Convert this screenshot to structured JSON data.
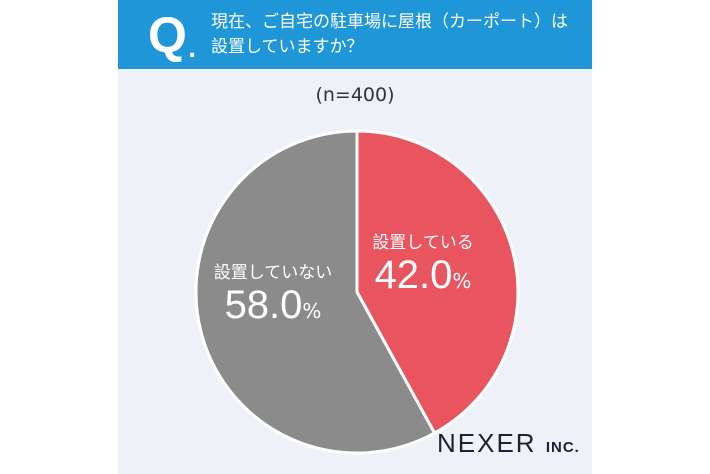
{
  "header": {
    "q": "Q",
    "q_dot": ".",
    "title_line1": "現在、ご自宅の駐車場に屋根（カーポート）は",
    "title_line2": "設置していますか？"
  },
  "sample": "(n=400)",
  "chart_data": {
    "type": "pie",
    "title": "現在、ご自宅の駐車場に屋根（カーポート）は設置していますか？",
    "n": 400,
    "slices": [
      {
        "label": "設置している",
        "value": 42.0,
        "display": "42.0",
        "unit": "%",
        "color": "#e8555f"
      },
      {
        "label": "設置していない",
        "value": 58.0,
        "display": "58.0",
        "unit": "%",
        "color": "#8b8b8b"
      }
    ]
  },
  "logo": {
    "name": "NEXER",
    "suffix": "INC."
  }
}
